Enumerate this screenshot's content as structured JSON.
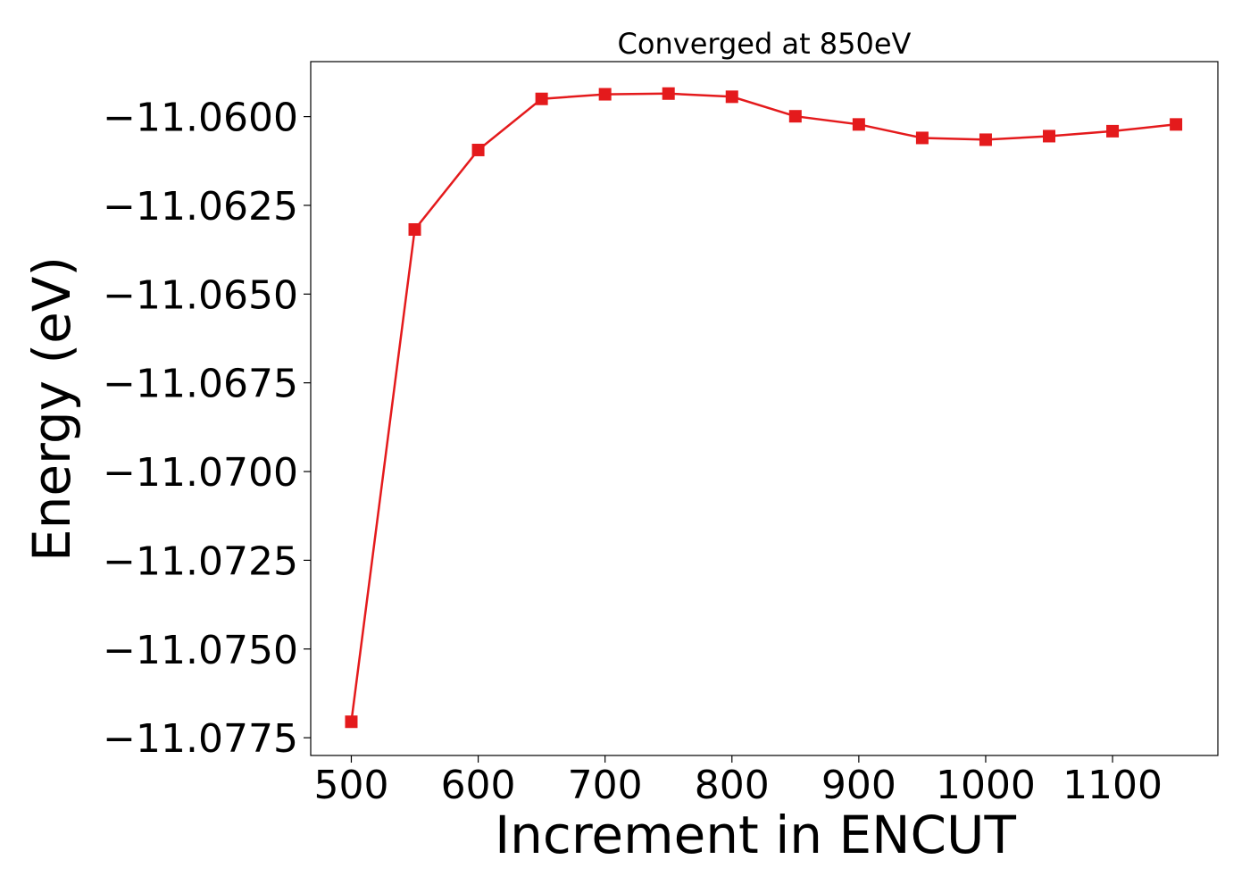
{
  "chart_data": {
    "type": "line",
    "title": "Converged at 850eV",
    "xlabel": "Increment in ENCUT",
    "ylabel": "Energy (eV)",
    "xlim": [
      468,
      1183
    ],
    "ylim": [
      -11.078,
      -11.05845
    ],
    "xticks": [
      500,
      600,
      700,
      800,
      900,
      1000,
      1100
    ],
    "xtick_labels": [
      "500",
      "600",
      "700",
      "800",
      "900",
      "1000",
      "1100"
    ],
    "yticks": [
      -11.06,
      -11.0625,
      -11.065,
      -11.0675,
      -11.07,
      -11.0725,
      -11.075,
      -11.0775
    ],
    "ytick_labels": [
      "−11.0600",
      "−11.0625",
      "−11.0650",
      "−11.0675",
      "−11.0700",
      "−11.0725",
      "−11.0750",
      "−11.0775"
    ],
    "grid": false,
    "color": "#e41a1c",
    "marker": "square",
    "series": [
      {
        "x": [
          500,
          550,
          600,
          650,
          700,
          750,
          800,
          850,
          900,
          950,
          1000,
          1050,
          1100,
          1150
        ],
        "y": [
          -11.07705,
          -11.06318,
          -11.06094,
          -11.0595,
          -11.05937,
          -11.05935,
          -11.05944,
          -11.05999,
          -11.06022,
          -11.0606,
          -11.06065,
          -11.06055,
          -11.06041,
          -11.06022
        ]
      }
    ]
  }
}
